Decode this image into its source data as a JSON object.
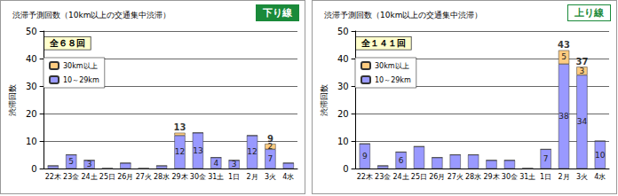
{
  "chart_data": [
    {
      "type": "bar",
      "title": "渋滞予測回数（10km以上の交通集中渋滞）",
      "subtitle": "下り線",
      "annotations": [
        "全６８回"
      ],
      "categories": [
        "22木",
        "23金",
        "24土",
        "25日",
        "26月",
        "27火",
        "28水",
        "29木",
        "30金",
        "31土",
        "1日",
        "2月",
        "3火",
        "4水"
      ],
      "series": [
        {
          "name": "10～29km",
          "color": "#9999ff",
          "values": [
            1,
            5,
            3,
            0,
            2,
            0,
            1,
            12,
            13,
            4,
            3,
            12,
            7,
            2
          ],
          "value_labels": [
            null,
            "5",
            "3",
            null,
            null,
            null,
            null,
            "12",
            "13",
            "4",
            "3",
            "12",
            "7",
            null
          ]
        },
        {
          "name": "30km以上",
          "color": "#ffcc80",
          "values": [
            0,
            0,
            0,
            0,
            0,
            0,
            0,
            1,
            0,
            0,
            0,
            0,
            2,
            0
          ],
          "value_labels": [
            null,
            null,
            null,
            null,
            null,
            null,
            null,
            null,
            null,
            null,
            null,
            null,
            "2",
            null
          ]
        }
      ],
      "totals": [
        null,
        null,
        null,
        null,
        null,
        null,
        null,
        13,
        null,
        null,
        null,
        null,
        9,
        null
      ],
      "ylabel": "渋滞回数",
      "ylim": [
        0,
        50
      ],
      "yticks": [
        0,
        10,
        20,
        30,
        40,
        50
      ],
      "stacked": true,
      "grid": true,
      "legend": "top-left",
      "data_labels": true
    },
    {
      "type": "bar",
      "title": "渋滞予測回数（10km以上の交通集中渋滞）",
      "subtitle": "上り線",
      "annotations": [
        "全１４１回"
      ],
      "categories": [
        "22木",
        "23金",
        "24土",
        "25日",
        "26月",
        "27火",
        "28水",
        "29木",
        "30金",
        "31土",
        "1日",
        "2月",
        "3火",
        "4水"
      ],
      "series": [
        {
          "name": "10～29km",
          "color": "#9999ff",
          "values": [
            9,
            1,
            6,
            8,
            4,
            5,
            5,
            3,
            3,
            0,
            7,
            38,
            34,
            10
          ],
          "value_labels": [
            "9",
            null,
            "6",
            null,
            null,
            null,
            null,
            null,
            null,
            null,
            "7",
            "38",
            "34",
            "10"
          ]
        },
        {
          "name": "30km以上",
          "color": "#ffcc80",
          "values": [
            0,
            0,
            0,
            0,
            0,
            0,
            0,
            0,
            0,
            0,
            0,
            5,
            3,
            0
          ],
          "value_labels": [
            null,
            null,
            null,
            null,
            null,
            null,
            null,
            null,
            null,
            null,
            null,
            "5",
            "3",
            null
          ]
        }
      ],
      "totals": [
        null,
        null,
        null,
        null,
        null,
        null,
        null,
        null,
        null,
        null,
        null,
        43,
        37,
        null
      ],
      "ylabel": "渋滞回数",
      "ylim": [
        0,
        50
      ],
      "yticks": [
        0,
        10,
        20,
        30,
        40,
        50
      ],
      "stacked": true,
      "grid": true,
      "legend": "top-left",
      "data_labels": true
    }
  ]
}
